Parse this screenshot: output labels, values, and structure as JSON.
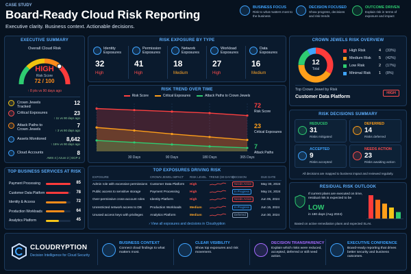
{
  "header": {
    "tag": "CASE STUDY",
    "title": "Board-Ready Cloud Risk Reporting",
    "subtitle": "Executive clarity. Business context. Actionable decisions.",
    "badges": [
      {
        "title": "BUSINESS FOCUS",
        "text": "Risk to what matters most to the business",
        "color": "#3fa4ff"
      },
      {
        "title": "DECISION FOCUSED",
        "text": "Show progress, decisions and risk trends",
        "color": "#3fa4ff"
      },
      {
        "title": "OUTCOME DRIVEN",
        "text": "Explain risk in terms of exposure and impact",
        "color": "#2ecc71"
      }
    ]
  },
  "executive_summary": {
    "title": "EXECUTIVE SUMMARY",
    "gauge_title": "Overall Cloud Risk",
    "level": "HIGH",
    "score_label": "Risk Score",
    "gauge": {
      "value": 72,
      "max": 100
    },
    "score_text": "72 / 100",
    "change": "↑ 8 pts vs 90 days ago",
    "metrics": [
      {
        "label": "Crown Jewels Tracked",
        "value": 12
      },
      {
        "label": "Critical Exposures",
        "value": 23,
        "note": "↑ 11 vs 90 days ago"
      },
      {
        "label": "Attack Paths to Crown Jewels",
        "value": 7,
        "note": "↑ 3 vs 90 days ago"
      },
      {
        "label": "Assets Monitored",
        "value": "8,642",
        "note": "↑ 15% vs 90 days ago"
      },
      {
        "label": "Cloud Accounts",
        "value": 8,
        "note": "AWS 4 | Azure 2 | GCP 2"
      }
    ]
  },
  "risk_exposure": {
    "title": "RISK EXPOSURE BY TYPE",
    "items": [
      {
        "label": "Identity Exposures",
        "value": 32,
        "level": "High",
        "color": "#ff4d4d"
      },
      {
        "label": "Permission Exposures",
        "value": 41,
        "level": "High",
        "color": "#ff4d4d"
      },
      {
        "label": "Network Exposures",
        "value": 18,
        "level": "Medium",
        "color": "#ffa629"
      },
      {
        "label": "Workload Exposures",
        "value": 27,
        "level": "High",
        "color": "#ff4d4d"
      },
      {
        "label": "Data Exposures",
        "value": 16,
        "level": "Medium",
        "color": "#ffa629"
      }
    ]
  },
  "risk_trend": {
    "type": "line",
    "title": "RISK TREND OVER TIME",
    "categories": [
      null,
      "30 Days",
      "90 Days",
      "180 Days",
      "365 Days"
    ],
    "series": [
      {
        "name": "Risk Score",
        "color": "#ff4040",
        "values": [
          86,
          83,
          80,
          77,
          72
        ]
      },
      {
        "name": "Critical Exposures",
        "color": "#ff9f1a",
        "values": [
          48,
          42,
          35,
          29,
          23
        ]
      },
      {
        "name": "Attack Paths to Crown Jewels",
        "color": "#2ecc71",
        "values": [
          22,
          18,
          14,
          10,
          7
        ]
      }
    ],
    "end_labels": [
      "Risk Score",
      "Critical Exposures",
      "Attack Paths"
    ]
  },
  "top_services": {
    "title": "TOP BUSINESS SERVICES AT RISK",
    "items": [
      {
        "name": "Payment Processing",
        "value": 85,
        "color": "#ff3b3b"
      },
      {
        "name": "Customer Data Platform",
        "value": 78,
        "color": "#ff3b3b"
      },
      {
        "name": "Identity & Access",
        "value": 72,
        "color": "#ff8c1a"
      },
      {
        "name": "Production Workloads",
        "value": 64,
        "color": "#ff8c1a"
      },
      {
        "name": "Analytics Platform",
        "value": 45,
        "color": "#f5c518"
      }
    ]
  },
  "top_exposures": {
    "title": "TOP EXPOSURES DRIVING RISK",
    "columns": [
      "EXPOSURE",
      "CROWN JEWEL IMPACT",
      "RISK LEVEL",
      "TREND (90 DAYS)",
      "DECISION",
      "DUE DATE"
    ],
    "rows": [
      {
        "exposure": "Admin role with excessive permissions",
        "impact": "Customer Data Platform",
        "level": "High",
        "level_color": "#ff4d4d",
        "decision": "Needs Action",
        "decision_color": "#ff4d4d",
        "due": "May 30, 2024"
      },
      {
        "exposure": "Public access to sensitive storage",
        "impact": "Payment Processing",
        "level": "High",
        "level_color": "#ff4d4d",
        "decision": "In Progress",
        "decision_color": "#3fa4ff",
        "due": "May 24, 2024"
      },
      {
        "exposure": "Over-permissive cross-account roles",
        "impact": "Identity Platform",
        "level": "High",
        "level_color": "#ff4d4d",
        "decision": "Needs Action",
        "decision_color": "#ff4d4d",
        "due": "Jun 05, 2024"
      },
      {
        "exposure": "Unrestricted network access to DB",
        "impact": "Production Workloads",
        "level": "Medium",
        "level_color": "#ffa629",
        "decision": "In Progress",
        "decision_color": "#3fa4ff",
        "due": "Jun 15, 2024"
      },
      {
        "exposure": "Unused access keys with privileges",
        "impact": "Analytics Platform",
        "level": "Medium",
        "level_color": "#ffa629",
        "decision": "Deferred",
        "decision_color": "#8aa0bb",
        "due": "Jun 30, 2024"
      }
    ],
    "link": "› View all exposures and decisions in Cloudryption"
  },
  "crown_jewels": {
    "title": "CROWN JEWELS RISK OVERVIEW",
    "total": 12,
    "total_label": "Total",
    "segments": [
      {
        "name": "High Risk",
        "count": 4,
        "share": "(33%)",
        "color": "#ff3b3b"
      },
      {
        "name": "Medium Risk",
        "count": 5,
        "share": "(42%)",
        "color": "#ff9f1a"
      },
      {
        "name": "Low Risk",
        "count": 2,
        "share": "(17%)",
        "color": "#2ecc71"
      },
      {
        "name": "Minimal Risk",
        "count": 1,
        "share": "(8%)",
        "color": "#3fa4ff"
      }
    ],
    "top_label": "Top Crown Jewel by Risk",
    "top_name": "Customer Data Platform",
    "top_level": "HIGH"
  },
  "risk_decisions": {
    "title": "RISK DECISIONS SUMMARY",
    "cards": [
      {
        "label": "REDUCED",
        "value": 31,
        "caption": "Risks mitigated",
        "color": "#2ecc71"
      },
      {
        "label": "DEFERRED",
        "value": 14,
        "caption": "Risks deferred",
        "color": "#ff9f1a"
      },
      {
        "label": "ACCEPTED",
        "value": 9,
        "caption": "Risks accepted",
        "color": "#3fa4ff"
      },
      {
        "label": "NEEDS ACTION",
        "value": 23,
        "caption": "Risks awaiting action",
        "color": "#ff4d4d"
      }
    ],
    "note": "All decisions are mapped to business impact and reviewed regularly."
  },
  "residual_outlook": {
    "title": "RESIDUAL RISK OUTLOOK",
    "intro": "If current plans are executed on time, residual risk is expected to be",
    "level": "LOW",
    "horizon": "in 180 days (Aug 2024)",
    "bars": [
      {
        "value": 72,
        "color": "#ff3b3b"
      },
      {
        "value": 58,
        "color": "#ff6a1a"
      },
      {
        "value": 46,
        "color": "#ff9f1a"
      },
      {
        "value": 34,
        "color": "#f5c518"
      },
      {
        "value": 20,
        "color": "#2ecc71"
      }
    ],
    "note": "Based on active remediation plans and expected SLAs."
  },
  "footer": {
    "brand": "CLOUDRYPTION",
    "tagline": "Decision Intelligence for Cloud Security",
    "items": [
      {
        "title": "BUSINESS CONTEXT",
        "text": "Connect cloud findings to what matters most.",
        "color": "#3fa4ff"
      },
      {
        "title": "CLEAR VISIBILITY",
        "text": "Show top exposures and risk movement.",
        "color": "#3fa4ff"
      },
      {
        "title": "DECISION TRANSPARENCY",
        "text": "Explain which risks were reduced, accepted, deferred or still need action.",
        "color": "#a66bff"
      },
      {
        "title": "EXECUTIVE CONFIDENCE",
        "text": "Board-ready reporting that drives better security and business outcomes.",
        "color": "#3fa4ff"
      }
    ]
  }
}
